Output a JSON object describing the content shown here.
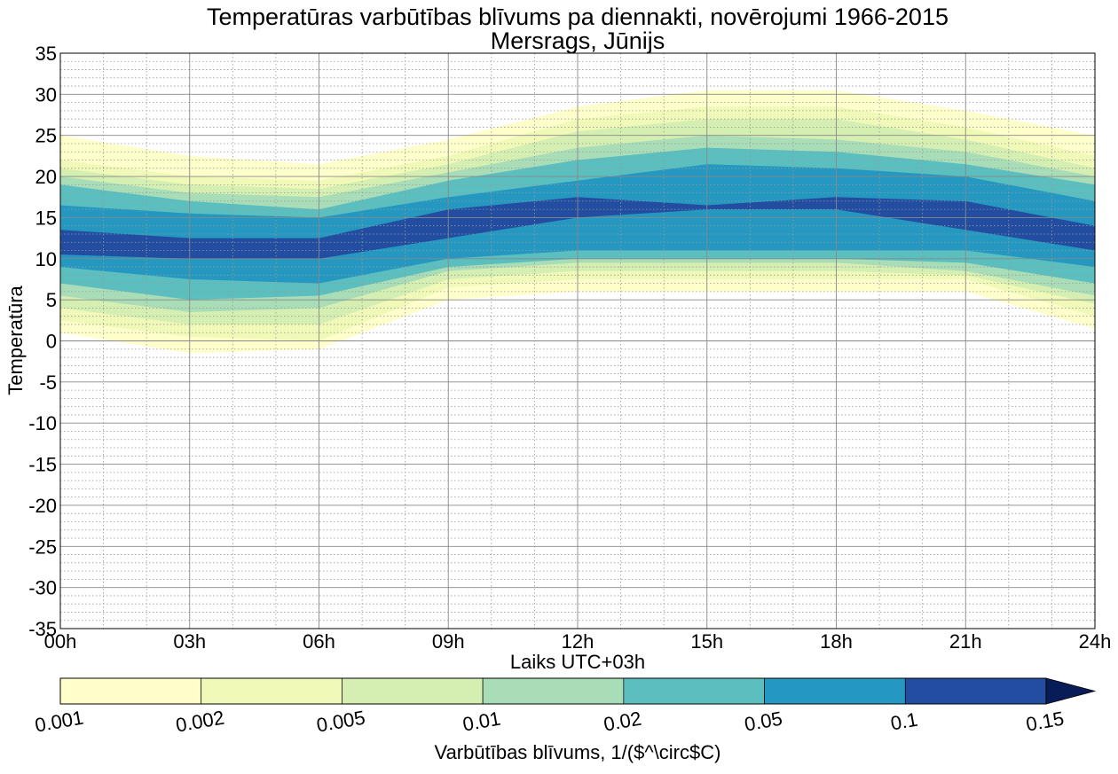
{
  "chart_data": {
    "type": "contour",
    "title": "Temperatūras varbūtības blīvums pa diennakti, novērojumi 1966-2015",
    "subtitle": "Mersrags, Jūnijs",
    "xlabel": "Laiks UTC+03h",
    "ylabel": "Temperatūra",
    "xlim": [
      0,
      24
    ],
    "ylim": [
      -35,
      35
    ],
    "x_ticks": [
      {
        "value": 0,
        "label": "00h"
      },
      {
        "value": 3,
        "label": "03h"
      },
      {
        "value": 6,
        "label": "06h"
      },
      {
        "value": 9,
        "label": "09h"
      },
      {
        "value": 12,
        "label": "12h"
      },
      {
        "value": 15,
        "label": "15h"
      },
      {
        "value": 18,
        "label": "18h"
      },
      {
        "value": 21,
        "label": "21h"
      },
      {
        "value": 24,
        "label": "24h"
      }
    ],
    "y_ticks": [
      {
        "value": 35,
        "label": "35"
      },
      {
        "value": 30,
        "label": "30"
      },
      {
        "value": 25,
        "label": "25"
      },
      {
        "value": 20,
        "label": "20"
      },
      {
        "value": 15,
        "label": "15"
      },
      {
        "value": 10,
        "label": "10"
      },
      {
        "value": 5,
        "label": "5"
      },
      {
        "value": 0,
        "label": "0"
      },
      {
        "value": -5,
        "label": "-5"
      },
      {
        "value": -10,
        "label": "-10"
      },
      {
        "value": -15,
        "label": "-15"
      },
      {
        "value": -20,
        "label": "-20"
      },
      {
        "value": -25,
        "label": "-25"
      },
      {
        "value": -30,
        "label": "-30"
      },
      {
        "value": -35,
        "label": "-35"
      }
    ],
    "grid": true,
    "hours": [
      0,
      3,
      6,
      9,
      12,
      15,
      18,
      21,
      24
    ],
    "bands": [
      {
        "level": 0.001,
        "color": "#ffffcc",
        "lower": [
          1,
          -1.5,
          -1,
          5,
          6,
          6,
          6,
          6,
          1.5
        ],
        "upper": [
          25,
          22.5,
          21.5,
          24.5,
          28.5,
          30.5,
          30.5,
          28,
          25
        ]
      },
      {
        "level": 0.002,
        "color": "#f0f9b8",
        "lower": [
          2.5,
          0.5,
          0,
          6.5,
          7.5,
          7.5,
          7.5,
          7.5,
          3
        ],
        "upper": [
          22,
          20,
          19.5,
          22.5,
          27,
          28.5,
          28.5,
          26,
          22.5
        ]
      },
      {
        "level": 0.005,
        "color": "#d5efb3",
        "lower": [
          4,
          2,
          2,
          7.5,
          8.5,
          8.5,
          8.5,
          8,
          4.5
        ],
        "upper": [
          21,
          19,
          18.5,
          21.5,
          25.5,
          27,
          27,
          24.5,
          21
        ]
      },
      {
        "level": 0.01,
        "color": "#a9ddb7",
        "lower": [
          5.5,
          3.5,
          4,
          8.5,
          9.5,
          9.5,
          9.5,
          8.5,
          5.5
        ],
        "upper": [
          20,
          18,
          17.5,
          20.5,
          23.5,
          25,
          24.5,
          23,
          20
        ]
      },
      {
        "level": 0.02,
        "color": "#5bbfc0",
        "lower": [
          7,
          5,
          5.5,
          9,
          10,
          10,
          10,
          9.5,
          7
        ],
        "upper": [
          19,
          17,
          16,
          19.5,
          22,
          23.5,
          23,
          21.5,
          19
        ]
      },
      {
        "level": 0.05,
        "color": "#2498c1",
        "lower": [
          9,
          7.5,
          7,
          10,
          11,
          11,
          11,
          11,
          9
        ],
        "upper": [
          16.5,
          15.5,
          15,
          17.5,
          19.5,
          21.5,
          21,
          20,
          17
        ]
      },
      {
        "level": 0.1,
        "color": "#234da0",
        "lower": [
          10.5,
          10,
          10,
          12.5,
          15,
          16,
          16,
          13.5,
          11
        ],
        "upper": [
          13.5,
          12.5,
          12.5,
          16,
          17.5,
          16.5,
          17.5,
          17,
          14
        ]
      }
    ],
    "colorbar": {
      "label": "Varbūtības blīvums, 1/($^\\circ$C)",
      "levels": [
        "0.001",
        "0.002",
        "0.005",
        "0.01",
        "0.02",
        "0.05",
        "0.1",
        "0.15"
      ],
      "colors": [
        "#ffffcc",
        "#f0f9b8",
        "#d5efb3",
        "#a9ddb7",
        "#5bbfc0",
        "#2498c1",
        "#234da0"
      ],
      "extend_color": "#081d58",
      "extend": "max"
    }
  }
}
